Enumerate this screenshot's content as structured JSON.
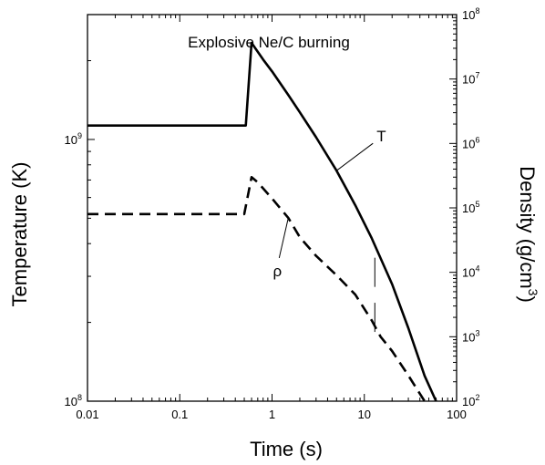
{
  "chart_data": {
    "type": "line",
    "title": "Explosive Ne/C burning",
    "xlabel": "Time  (s)",
    "ylabel_left": "Temperature  (K)",
    "ylabel_right": "Density  (g/cm",
    "ylabel_right_sup": "3",
    "ylabel_right_close": ")",
    "x_scale": "log",
    "y_left_scale": "log",
    "y_right_scale": "log",
    "xlim": [
      0.01,
      100
    ],
    "ylim_left": [
      100000000,
      3000000000
    ],
    "ylim_right": [
      100,
      100000000
    ],
    "x_ticks": [
      {
        "value": 0.01,
        "label": "0.01"
      },
      {
        "value": 0.1,
        "label": "0.1"
      },
      {
        "value": 1,
        "label": "1"
      },
      {
        "value": 10,
        "label": "10"
      },
      {
        "value": 100,
        "label": "100"
      }
    ],
    "y_left_ticks": [
      {
        "value": 100000000,
        "base": "10",
        "exp": "8"
      },
      {
        "value": 1000000000,
        "base": "10",
        "exp": "9"
      }
    ],
    "y_right_ticks": [
      {
        "value": 100,
        "base": "10",
        "exp": "2"
      },
      {
        "value": 1000,
        "base": "10",
        "exp": "3"
      },
      {
        "value": 10000,
        "base": "10",
        "exp": "4"
      },
      {
        "value": 100000,
        "base": "10",
        "exp": "5"
      },
      {
        "value": 1000000,
        "base": "10",
        "exp": "6"
      },
      {
        "value": 10000000,
        "base": "10",
        "exp": "7"
      },
      {
        "value": 100000000,
        "base": "10",
        "exp": "8"
      }
    ],
    "grid": false,
    "series": [
      {
        "name": "T",
        "axis": "left",
        "style": "solid",
        "x": [
          0.01,
          0.52,
          0.6,
          0.8,
          1,
          1.5,
          2,
          3,
          5,
          8,
          12,
          20,
          30,
          45,
          60
        ],
        "y": [
          1130000000,
          1130000000,
          2340000000,
          2020000000,
          1820000000,
          1480000000,
          1270000000,
          1020000000,
          760000000,
          560000000,
          420000000,
          280000000,
          190000000,
          125000000,
          100000000
        ]
      },
      {
        "name": "ρ",
        "axis": "right",
        "style": "dashed",
        "x": [
          0.01,
          0.5,
          0.6,
          0.7,
          1,
          1.5,
          2,
          3,
          5,
          8,
          12,
          15,
          20,
          30,
          45
        ],
        "y": [
          80000,
          80000,
          300000,
          250000,
          140000,
          70000,
          35000,
          18000,
          9000,
          4500,
          1800,
          1000,
          600,
          250,
          100
        ]
      }
    ],
    "markers": [
      {
        "x": 13,
        "y_right": 10000,
        "label": ""
      },
      {
        "x": 13,
        "y_right": 2000,
        "label": ""
      }
    ],
    "annotations": [
      {
        "text": "T",
        "series": "T"
      },
      {
        "text": "ρ",
        "series": "ρ"
      }
    ]
  }
}
